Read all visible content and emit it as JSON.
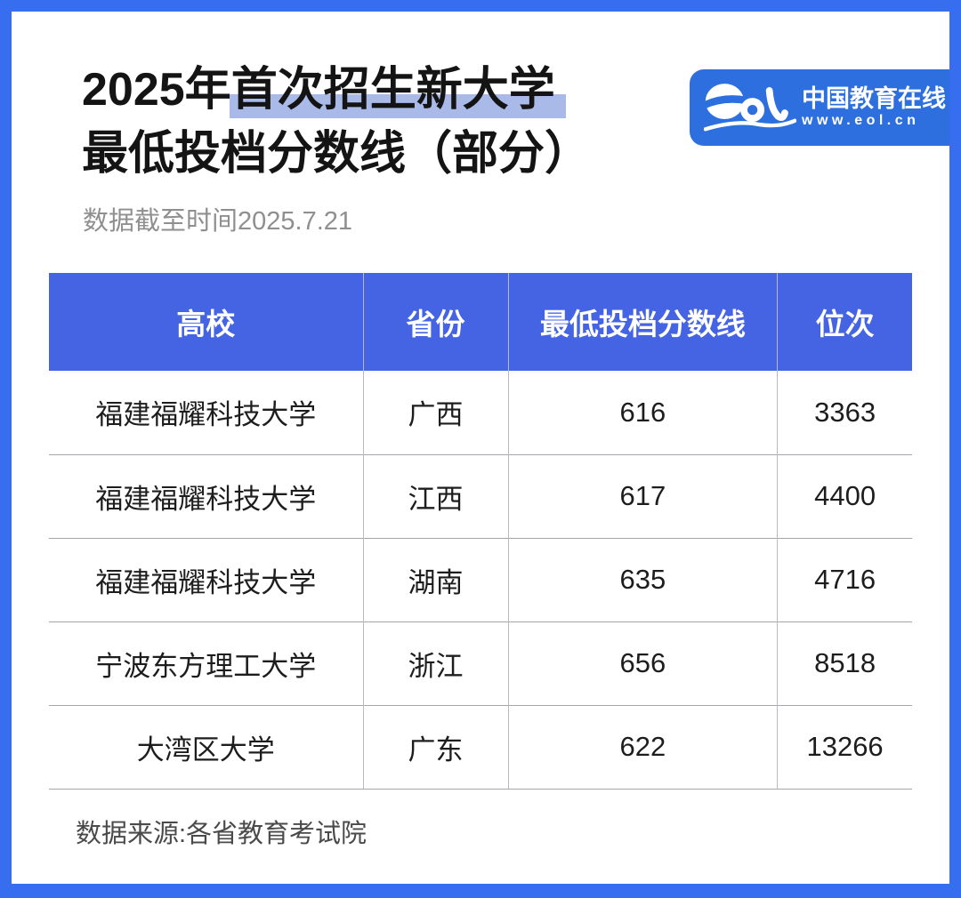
{
  "header": {
    "title_prefix": "2025年",
    "title_highlight": "首次招生新大学",
    "title_line2": "最低投档分数线（部分）",
    "subtitle": "数据截至时间2025.7.21",
    "highlight_color": "#a9b9e8",
    "title_color": "#141414"
  },
  "logo": {
    "mark_name": "eol-logo",
    "site_name": "中国教育在线",
    "site_url": "www.eol.cn",
    "bg_color": "#2e6fe0"
  },
  "table": {
    "header_bg": "#4564e4",
    "columns": [
      "高校",
      "省份",
      "最低投档分数线",
      "位次"
    ],
    "column_keys": [
      "school",
      "province",
      "score",
      "rank"
    ],
    "rows": [
      [
        "福建福耀科技大学",
        "广西",
        "616",
        "3363"
      ],
      [
        "福建福耀科技大学",
        "江西",
        "617",
        "4400"
      ],
      [
        "福建福耀科技大学",
        "湖南",
        "635",
        "4716"
      ],
      [
        "宁波东方理工大学",
        "浙江",
        "656",
        "8518"
      ],
      [
        "大湾区大学",
        "广东",
        "622",
        "13266"
      ]
    ]
  },
  "footer": {
    "source": "数据来源:各省教育考试院"
  },
  "frame_color": "#376ef0"
}
